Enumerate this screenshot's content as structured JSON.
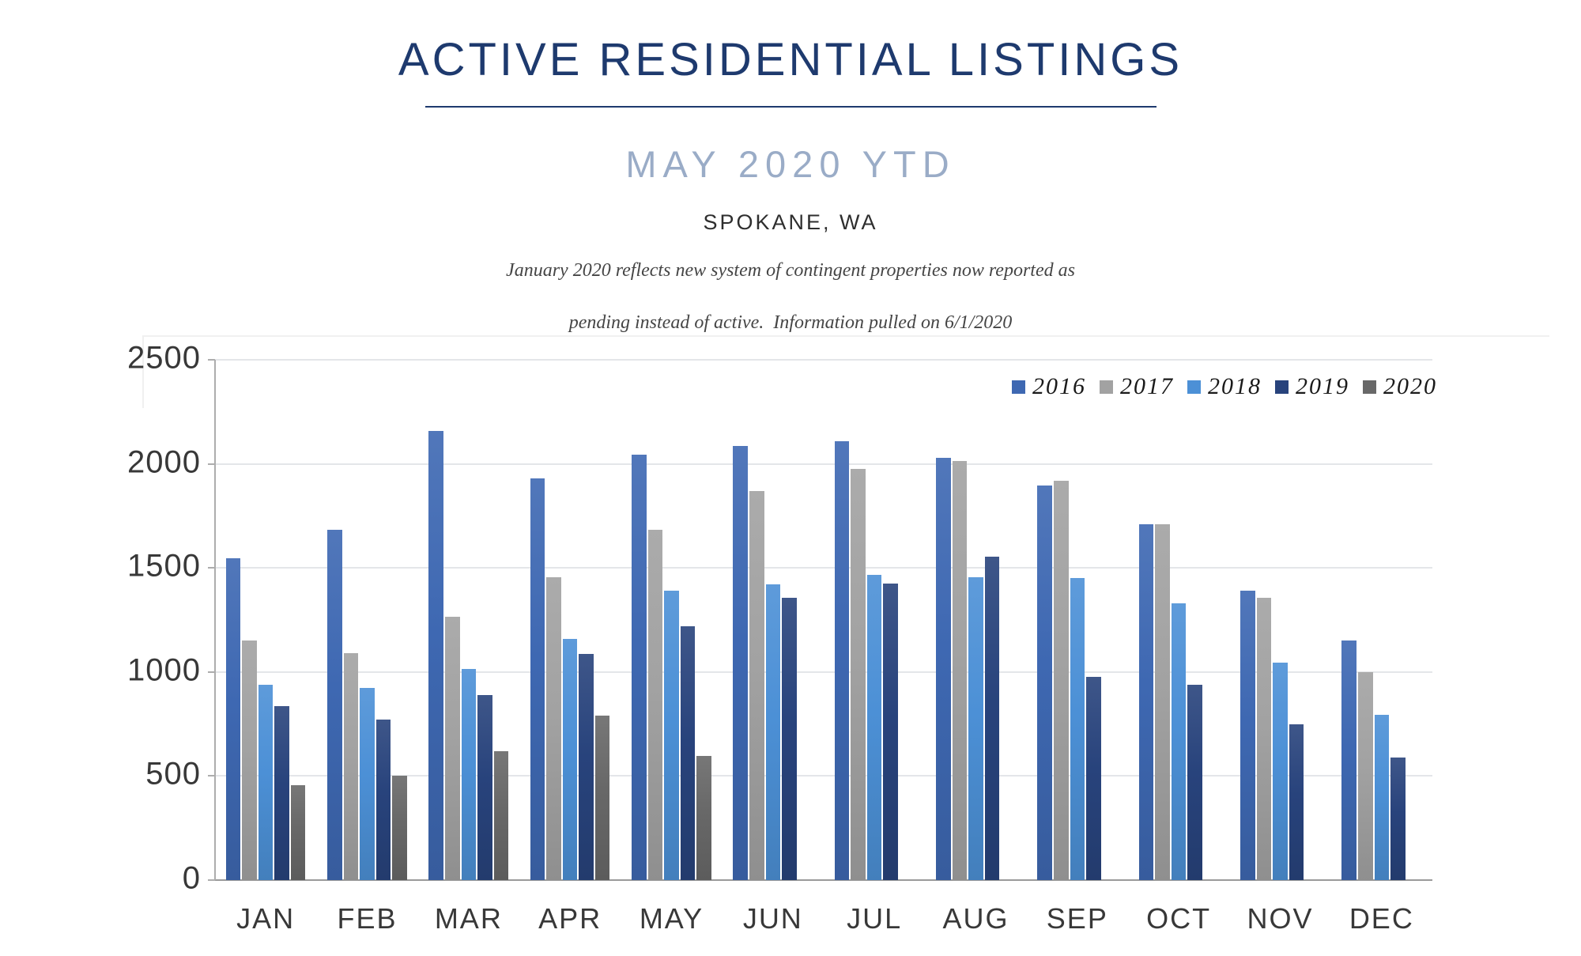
{
  "header": {
    "title": "ACTIVE RESIDENTIAL LISTINGS",
    "subtitle": "MAY 2020 YTD",
    "location": "SPOKANE, WA",
    "note_line1": "January 2020 reflects new system of contingent properties now reported as",
    "note_line2": "pending instead of active.  Information pulled on 6/1/2020",
    "title_color": "#1e3a6e",
    "subtitle_color": "#9aacc7"
  },
  "chart_data": {
    "type": "bar",
    "title": "ACTIVE RESIDENTIAL LISTINGS",
    "subtitle": "MAY 2020 YTD",
    "region": "SPOKANE, WA",
    "categories": [
      "JAN",
      "FEB",
      "MAR",
      "APR",
      "MAY",
      "JUN",
      "JUL",
      "AUG",
      "SEP",
      "OCT",
      "NOV",
      "DEC"
    ],
    "series": [
      {
        "name": "2016",
        "color": "#3E68B2",
        "values": [
          1545,
          1685,
          2160,
          1930,
          2045,
          2085,
          2110,
          2030,
          1895,
          1710,
          1390,
          1150
        ]
      },
      {
        "name": "2017",
        "color": "#A2A2A2",
        "values": [
          1150,
          1090,
          1265,
          1455,
          1685,
          1870,
          1975,
          2015,
          1920,
          1710,
          1355,
          1000
        ]
      },
      {
        "name": "2018",
        "color": "#4C90D6",
        "values": [
          940,
          925,
          1015,
          1160,
          1390,
          1420,
          1465,
          1455,
          1450,
          1330,
          1045,
          795
        ]
      },
      {
        "name": "2019",
        "color": "#28437C",
        "values": [
          835,
          770,
          890,
          1085,
          1220,
          1355,
          1425,
          1555,
          975,
          940,
          750,
          590
        ]
      },
      {
        "name": "2020",
        "color": "#686868",
        "values": [
          455,
          500,
          620,
          790,
          595,
          null,
          null,
          null,
          null,
          null,
          null,
          null
        ]
      }
    ],
    "ylim": [
      0,
      2500
    ],
    "ytick_step": 500,
    "ytick_labels": [
      "0",
      "500",
      "1000",
      "1500",
      "2000",
      "2500"
    ],
    "grid": true,
    "legend_position": "top-right",
    "legend_labels": [
      "2016",
      "2017",
      "2018",
      "2019",
      "2020"
    ],
    "xlabel": "",
    "ylabel": ""
  }
}
